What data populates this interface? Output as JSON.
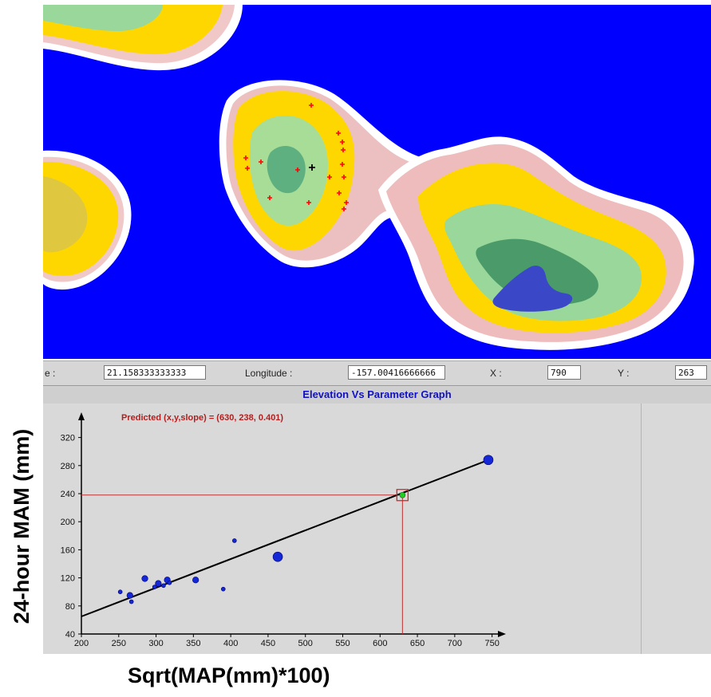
{
  "map": {
    "colors": {
      "water": "#0000ff",
      "coast": "#ffffff",
      "lowland": "#e8b4b4",
      "midland": "#ffd700",
      "highland": "#8fd98f",
      "peak": "#3040c0"
    },
    "marker_icon": "red-plus-marker-icon"
  },
  "coordinate_bar": {
    "latitude_label": "e :",
    "latitude_value": "21.158333333333",
    "longitude_label": "Longitude :",
    "longitude_value": "-157.00416666666",
    "x_label": "X :",
    "x_value": "790",
    "y_label": "Y :",
    "y_value": "263"
  },
  "graph": {
    "title": "Elevation Vs Parameter Graph",
    "annotation": "Predicted (x,y,slope) = (630, 238, 0.401)"
  },
  "chart_data": {
    "type": "scatter",
    "xlabel": "Sqrt(MAP(mm)*100)",
    "ylabel": "24-hour MAM (mm)",
    "xlim": [
      200,
      760
    ],
    "ylim": [
      40,
      340
    ],
    "xticks": [
      200,
      250,
      300,
      350,
      400,
      450,
      500,
      550,
      600,
      650,
      700,
      750
    ],
    "yticks": [
      40,
      80,
      120,
      160,
      200,
      240,
      280,
      320
    ],
    "points": [
      {
        "x": 252,
        "y": 100,
        "size": "small"
      },
      {
        "x": 265,
        "y": 95,
        "size": "medium"
      },
      {
        "x": 267,
        "y": 86,
        "size": "small"
      },
      {
        "x": 285,
        "y": 119,
        "size": "medium"
      },
      {
        "x": 298,
        "y": 107,
        "size": "small"
      },
      {
        "x": 303,
        "y": 112,
        "size": "medium"
      },
      {
        "x": 310,
        "y": 109,
        "size": "small"
      },
      {
        "x": 315,
        "y": 117,
        "size": "medium"
      },
      {
        "x": 318,
        "y": 113,
        "size": "small"
      },
      {
        "x": 353,
        "y": 117,
        "size": "medium"
      },
      {
        "x": 390,
        "y": 104,
        "size": "small"
      },
      {
        "x": 405,
        "y": 173,
        "size": "small"
      },
      {
        "x": 463,
        "y": 150,
        "size": "large"
      },
      {
        "x": 745,
        "y": 288,
        "size": "large"
      }
    ],
    "fit_line": {
      "x": [
        200,
        745
      ],
      "y": [
        65,
        288
      ]
    },
    "predicted": {
      "x": 630,
      "y": 238,
      "slope": 0.401
    },
    "colors": {
      "points": "#1428d8",
      "fit": "#000000",
      "prediction": "#c03030",
      "predicted_point": "#22cc22"
    }
  }
}
